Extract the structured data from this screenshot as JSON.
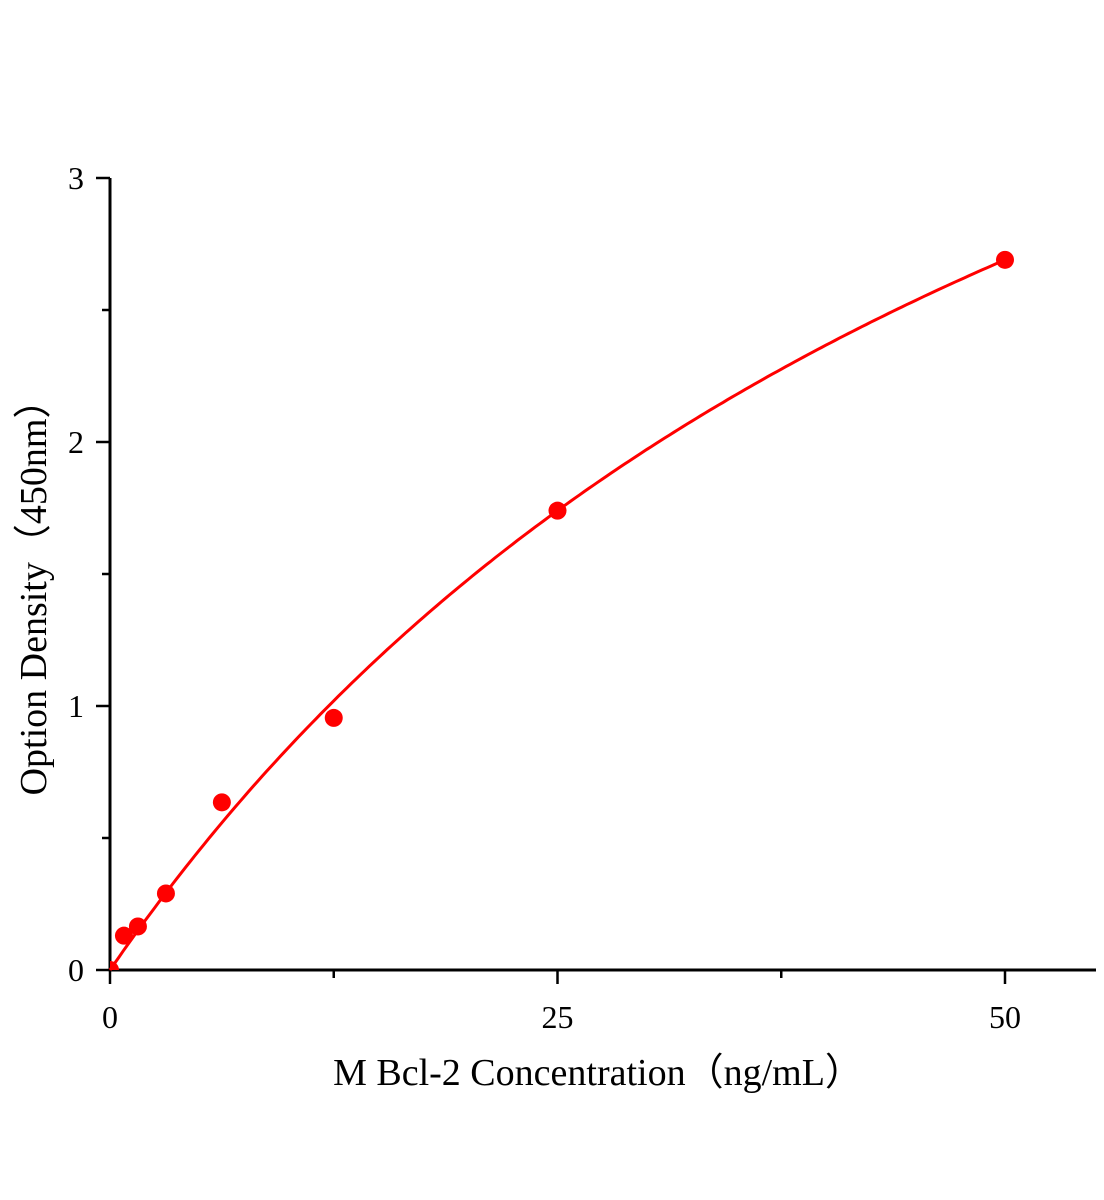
{
  "chart_data": {
    "type": "scatter",
    "title": "",
    "xlabel": "M Bcl-2 Concentration（ng/mL）",
    "ylabel": "Option Density（450nm）",
    "xlim": [
      0,
      55
    ],
    "ylim": [
      0,
      3
    ],
    "x_ticks": [
      "0",
      "25",
      "50"
    ],
    "y_ticks": [
      "0",
      "1",
      "2",
      "3"
    ],
    "grid": false,
    "legend": "none",
    "color": "#ff0000",
    "series": [
      {
        "x": [
          0,
          0.78,
          1.56,
          3.125,
          6.25,
          12.5,
          25,
          50
        ],
        "y": [
          0,
          0.13,
          0.165,
          0.29,
          0.635,
          0.955,
          1.74,
          2.69
        ],
        "fit_curve": true
      }
    ]
  }
}
